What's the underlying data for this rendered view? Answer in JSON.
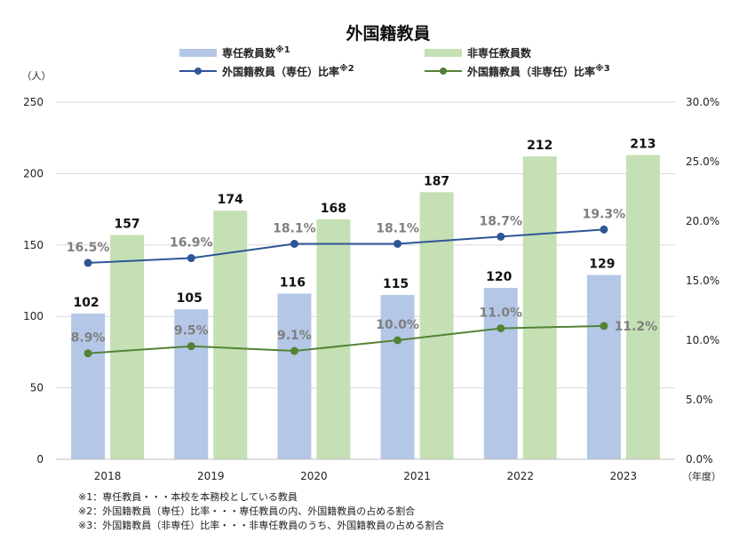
{
  "chart_data": {
    "type": "bar",
    "title": "外国籍教員",
    "categories": [
      "2018",
      "2019",
      "2020",
      "2021",
      "2022",
      "2023"
    ],
    "series": [
      {
        "name": "専任教員数",
        "note_mark": "※1",
        "kind": "bar",
        "axis": "left",
        "color": "#b4c7e7",
        "values": [
          102,
          105,
          116,
          115,
          120,
          129
        ]
      },
      {
        "name": "非専任教員数",
        "note_mark": "",
        "kind": "bar",
        "axis": "left",
        "color": "#c5e0b4",
        "values": [
          157,
          174,
          168,
          187,
          212,
          213
        ]
      },
      {
        "name": "外国籍教員（専任）比率",
        "note_mark": "※2",
        "kind": "line",
        "axis": "right",
        "color": "#2f5597",
        "values": [
          16.5,
          16.9,
          18.1,
          18.1,
          18.7,
          19.3
        ]
      },
      {
        "name": "外国籍教員（非専任）比率",
        "note_mark": "※3",
        "kind": "line",
        "axis": "right",
        "color": "#548235",
        "values": [
          8.9,
          9.5,
          9.1,
          10.0,
          11.0,
          11.2
        ]
      }
    ],
    "left_axis": {
      "unit": "（人）",
      "ylim": [
        0,
        250
      ],
      "ticks": [
        "0",
        "50",
        "100",
        "150",
        "200",
        "250"
      ]
    },
    "right_axis": {
      "unit": "",
      "ylim": [
        0,
        30
      ],
      "ticks": [
        "0.0%",
        "5.0%",
        "10.0%",
        "15.0%",
        "20.0%",
        "25.0%",
        "30.0%"
      ]
    },
    "x_unit": "（年度）",
    "grid": true,
    "legend_position": "top"
  },
  "notes": [
    "※1：専任教員・・・本校を本務校としている教員",
    "※2：外国籍教員（専任）比率・・・専任教員の内、外国籍教員の占める割合",
    "※3：外国籍教員（非専任）比率・・・非専任教員のうち、外国籍教員の占める割合"
  ]
}
